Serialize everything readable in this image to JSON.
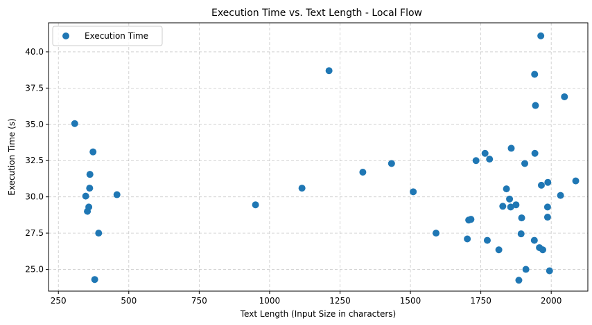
{
  "chart_data": {
    "type": "scatter",
    "title": "Execution Time vs. Text Length - Local Flow",
    "xlabel": "Text Length (Input Size in characters)",
    "ylabel": "Execution Time (s)",
    "xlim": [
      215,
      2130
    ],
    "ylim": [
      23.5,
      42.0
    ],
    "xticks": [
      250,
      500,
      750,
      1000,
      1250,
      1500,
      1750,
      2000
    ],
    "xtick_labels": [
      "250",
      "500",
      "750",
      "1000",
      "1250",
      "1500",
      "1750",
      "2000"
    ],
    "yticks": [
      25.0,
      27.5,
      30.0,
      32.5,
      35.0,
      37.5,
      40.0
    ],
    "ytick_labels": [
      "25.0",
      "27.5",
      "30.0",
      "32.5",
      "35.0",
      "37.5",
      "40.0"
    ],
    "grid": true,
    "legend_position": "top-left",
    "marker_color": "#1f77b4",
    "series": [
      {
        "name": "Execution Time",
        "points": [
          [
            308,
            35.05
          ],
          [
            347,
            30.05
          ],
          [
            353,
            29.0
          ],
          [
            358,
            29.3
          ],
          [
            361,
            30.6
          ],
          [
            362,
            31.55
          ],
          [
            373,
            33.1
          ],
          [
            379,
            24.3
          ],
          [
            393,
            27.5
          ],
          [
            458,
            30.15
          ],
          [
            950,
            29.45
          ],
          [
            1115,
            30.6
          ],
          [
            1211,
            38.7
          ],
          [
            1331,
            31.7
          ],
          [
            1433,
            32.3
          ],
          [
            1510,
            30.35
          ],
          [
            1591,
            27.5
          ],
          [
            1702,
            27.1
          ],
          [
            1707,
            28.4
          ],
          [
            1715,
            28.45
          ],
          [
            1733,
            32.5
          ],
          [
            1765,
            33.0
          ],
          [
            1773,
            27.0
          ],
          [
            1781,
            32.6
          ],
          [
            1814,
            26.35
          ],
          [
            1828,
            29.35
          ],
          [
            1841,
            30.55
          ],
          [
            1852,
            29.85
          ],
          [
            1856,
            29.3
          ],
          [
            1858,
            33.35
          ],
          [
            1875,
            29.45
          ],
          [
            1885,
            24.25
          ],
          [
            1893,
            27.45
          ],
          [
            1895,
            28.55
          ],
          [
            1906,
            32.3
          ],
          [
            1910,
            25.0
          ],
          [
            1940,
            27.0
          ],
          [
            1941,
            38.45
          ],
          [
            1942,
            33.0
          ],
          [
            1944,
            36.3
          ],
          [
            1958,
            26.5
          ],
          [
            1963,
            41.1
          ],
          [
            1965,
            30.8
          ],
          [
            1970,
            26.35
          ],
          [
            1987,
            28.6
          ],
          [
            1987,
            29.3
          ],
          [
            1988,
            31.0
          ],
          [
            1994,
            24.9
          ],
          [
            2033,
            30.1
          ],
          [
            2047,
            36.9
          ],
          [
            2087,
            31.1
          ]
        ]
      }
    ]
  }
}
